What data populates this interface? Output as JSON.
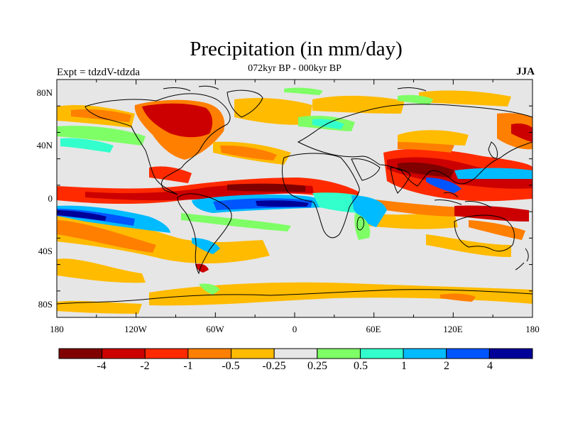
{
  "title": "Precipitation (in mm/day)",
  "subtitle": "072kyr BP - 000kyr BP",
  "left_label": "Expt = tdzdV-tdzda",
  "right_label": "JJA",
  "lat_labels": [
    "80N",
    "40N",
    "0",
    "40S",
    "80S"
  ],
  "lon_labels": [
    "180",
    "120W",
    "60W",
    "0",
    "60E",
    "120E",
    "180"
  ],
  "colorbar": {
    "labels": [
      "-4",
      "-2",
      "-1",
      "-0.5",
      "-0.25",
      "0.25",
      "0.5",
      "1",
      "2",
      "4"
    ],
    "colors": [
      "#800000",
      "#cc0000",
      "#ff2a00",
      "#ff7f00",
      "#ffbb00",
      "#e6e6e6",
      "#7fff66",
      "#33ffcc",
      "#00bbff",
      "#0055ff",
      "#000099"
    ]
  },
  "map_background": "#e6e6e6"
}
